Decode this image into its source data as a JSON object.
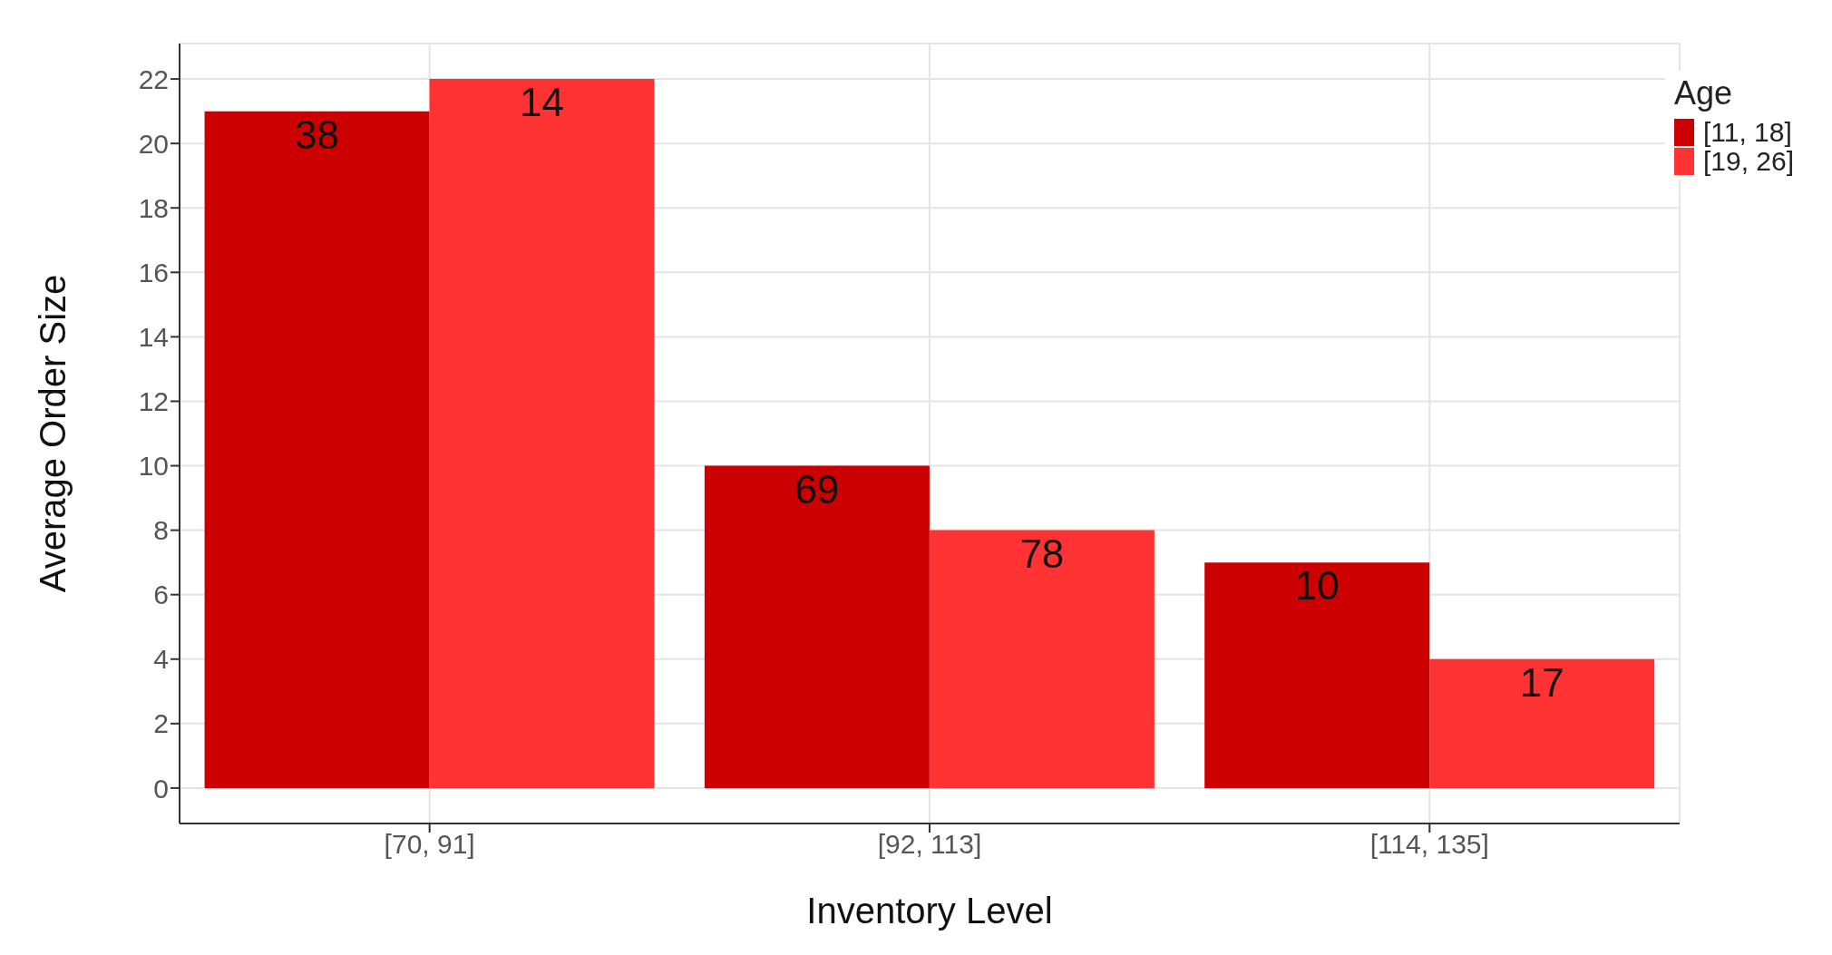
{
  "chart_data": {
    "type": "bar",
    "xlabel": "Inventory Level",
    "ylabel": "Average Order Size",
    "legend_title": "Age",
    "categories": [
      "[70, 91]",
      "[92, 113]",
      "[114, 135]"
    ],
    "series": [
      {
        "name": "[11, 18]",
        "color": "#cc0000",
        "values": [
          21,
          10,
          7
        ]
      },
      {
        "name": "[19, 26]",
        "color": "#ff3333",
        "values": [
          22,
          8,
          4
        ]
      }
    ],
    "annotations": [
      {
        "text": "38",
        "x": "[70, 91]",
        "y": 21
      },
      {
        "text": "69",
        "x": "[92, 113]",
        "y": 10
      },
      {
        "text": "10",
        "x": "[114, 135]",
        "y": 7
      },
      {
        "text": "14",
        "x": "[70, 91]",
        "y": 22
      },
      {
        "text": "78",
        "x": "[92, 113]",
        "y": 8
      },
      {
        "text": "17",
        "x": "[114, 135]",
        "y": 4
      }
    ],
    "ylim": [
      -1.1,
      23.1
    ],
    "yticks": [
      0,
      2,
      4,
      6,
      8,
      10,
      12,
      14,
      16,
      18,
      20,
      22
    ],
    "grid": true,
    "legend": "top right"
  }
}
